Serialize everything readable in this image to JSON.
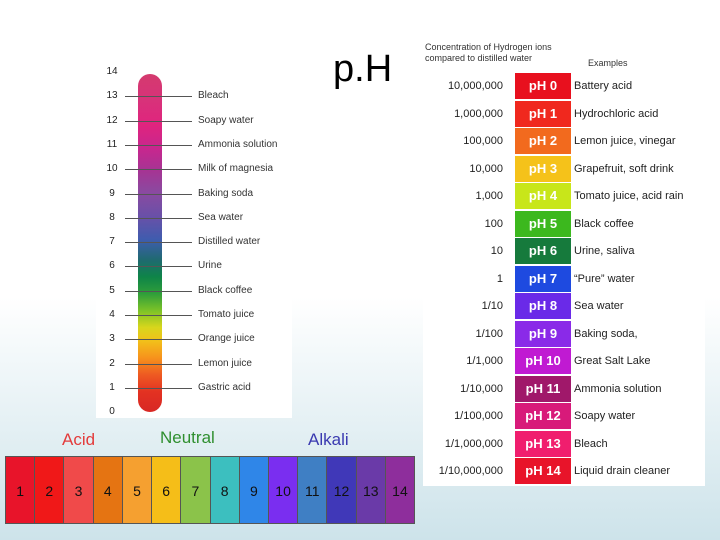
{
  "title": "p.H",
  "vertical_scale": {
    "ticks": [
      {
        "num": "14",
        "label": ""
      },
      {
        "num": "13",
        "label": "Bleach"
      },
      {
        "num": "12",
        "label": "Soapy water"
      },
      {
        "num": "11",
        "label": "Ammonia solution"
      },
      {
        "num": "10",
        "label": "Milk of magnesia"
      },
      {
        "num": "9",
        "label": "Baking soda"
      },
      {
        "num": "8",
        "label": "Sea water"
      },
      {
        "num": "7",
        "label": "Distilled water"
      },
      {
        "num": "6",
        "label": "Urine"
      },
      {
        "num": "5",
        "label": "Black coffee"
      },
      {
        "num": "4",
        "label": "Tomato juice"
      },
      {
        "num": "3",
        "label": "Orange juice"
      },
      {
        "num": "2",
        "label": "Lemon juice"
      },
      {
        "num": "1",
        "label": "Gastric acid"
      },
      {
        "num": "0",
        "label": ""
      }
    ]
  },
  "strip": {
    "acid_label": "Acid",
    "neutral_label": "Neutral",
    "alkali_label": "Alkali",
    "cells": [
      {
        "num": "1",
        "color": "#e8142a"
      },
      {
        "num": "2",
        "color": "#f01818"
      },
      {
        "num": "3",
        "color": "#f04a4a"
      },
      {
        "num": "4",
        "color": "#e57412"
      },
      {
        "num": "5",
        "color": "#f5a030"
      },
      {
        "num": "6",
        "color": "#f5be18"
      },
      {
        "num": "7",
        "color": "#8bc34a"
      },
      {
        "num": "8",
        "color": "#3cbfbf"
      },
      {
        "num": "9",
        "color": "#2f86e8"
      },
      {
        "num": "10",
        "color": "#7a2ef0"
      },
      {
        "num": "11",
        "color": "#3f7fc4"
      },
      {
        "num": "12",
        "color": "#4038b8"
      },
      {
        "num": "13",
        "color": "#6a3aa8"
      },
      {
        "num": "14",
        "color": "#8e2e9c"
      }
    ]
  },
  "table": {
    "header_concentration": "Concentration of Hydrogen ions compared to distilled water",
    "header_examples": "Examples",
    "rows": [
      {
        "conc": "10,000,000",
        "ph": "pH 0",
        "example": "Battery acid",
        "color": "#e8101e"
      },
      {
        "conc": "1,000,000",
        "ph": "pH 1",
        "example": "Hydrochloric acid",
        "color": "#f0281e"
      },
      {
        "conc": "100,000",
        "ph": "pH 2",
        "example": "Lemon juice, vinegar",
        "color": "#f26a1e"
      },
      {
        "conc": "10,000",
        "ph": "pH 3",
        "example": "Grapefruit, soft drink",
        "color": "#f5c21a"
      },
      {
        "conc": "1,000",
        "ph": "pH 4",
        "example": "Tomato juice, acid rain",
        "color": "#c8e61a"
      },
      {
        "conc": "100",
        "ph": "pH 5",
        "example": "Black coffee",
        "color": "#3cb81e"
      },
      {
        "conc": "10",
        "ph": "pH 6",
        "example": "Urine, saliva",
        "color": "#167a3c"
      },
      {
        "conc": "1",
        "ph": "pH 7",
        "example": "“Pure” water",
        "color": "#1e4ae0"
      },
      {
        "conc": "1/10",
        "ph": "pH 8",
        "example": "Sea water",
        "color": "#6a2ae8"
      },
      {
        "conc": "1/100",
        "ph": "pH 9",
        "example": "Baking soda,",
        "color": "#8a2ae8"
      },
      {
        "conc": "1/1,000",
        "ph": "pH 10",
        "example": "Great Salt Lake",
        "color": "#c01ad2"
      },
      {
        "conc": "1/10,000",
        "ph": "pH 11",
        "example": "Ammonia solution",
        "color": "#a0186a"
      },
      {
        "conc": "1/100,000",
        "ph": "pH 12",
        "example": "Soapy water",
        "color": "#d81a7a"
      },
      {
        "conc": "1/1,000,000",
        "ph": "pH 13",
        "example": "Bleach",
        "color": "#f01e6e"
      },
      {
        "conc": "1/10,000,000",
        "ph": "pH 14",
        "example": "Liquid drain cleaner",
        "color": "#e8142a"
      }
    ]
  }
}
